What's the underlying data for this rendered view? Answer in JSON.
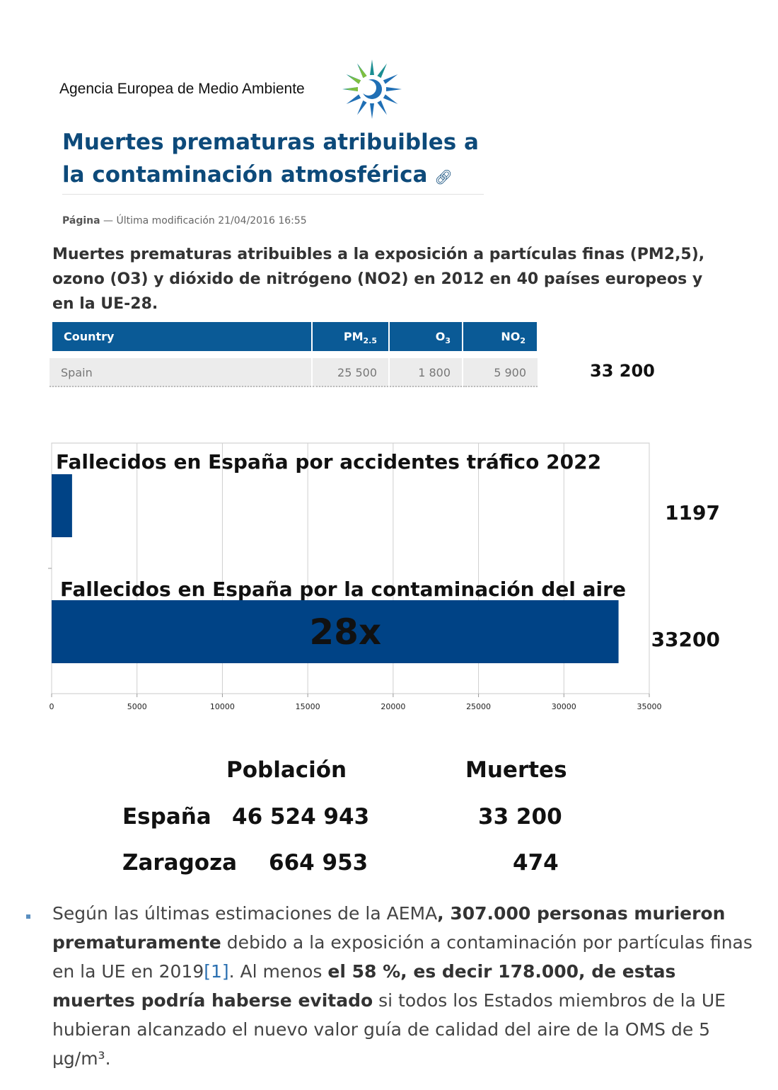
{
  "header": {
    "agency": "Agencia Europea de Medio Ambiente",
    "logo_icon": "eea-sunflower-logo-icon",
    "title": "Muertes prematuras atribuibles a la contaminación atmosférica",
    "permalink_icon": "link-icon",
    "meta_kind": "Página",
    "meta_separator": "—",
    "meta_modified": "Última modificación 21/04/2016 16:55"
  },
  "subtitle": "Muertes prematuras atribuibles a la exposición a partículas finas (PM2,5), ozono (O3) y dióxido de nitrógeno (NO2) en 2012 en 40 países europeos y en la UE-28.",
  "table": {
    "columns": [
      "Country",
      "PM",
      "O",
      "NO"
    ],
    "subscripts": [
      "",
      "2.5",
      "3",
      "2"
    ],
    "row": {
      "country": "Spain",
      "pm25": "25 500",
      "o3": "1 800",
      "no2": "5 900"
    },
    "total": "33 200"
  },
  "chart_data": {
    "type": "bar",
    "orientation": "horizontal",
    "categories": [
      "Fallecidos en España por accidentes tráfico 2022",
      "Fallecidos en España por la contaminación del aire"
    ],
    "values": [
      1197,
      33200
    ],
    "value_labels": [
      "1197",
      "33200"
    ],
    "annotation": "28x",
    "xlim": [
      0,
      35000
    ],
    "xticks": [
      0,
      5000,
      10000,
      15000,
      20000,
      25000,
      30000,
      35000
    ],
    "grid": true,
    "bar_color": "#004386"
  },
  "stats": {
    "headers": {
      "population": "Población",
      "deaths": "Muertes"
    },
    "rows": [
      {
        "place": "España",
        "population": "46 524 943",
        "deaths": "33 200"
      },
      {
        "place": "Zaragoza",
        "population": "664 953",
        "deaths": "474"
      }
    ]
  },
  "bullet": {
    "t1": "Según las últimas estimaciones de la AEMA",
    "b1": ", 307.000 personas murieron prematuramente",
    "t2": " debido a la exposición a contaminación por partículas finas en la UE en 2019",
    "ref": "[1]",
    "t3": ". Al menos ",
    "b2": "el 58 %, es decir 178.000, de estas muertes podría haberse evitado",
    "t4": " si todos los Estados miembros de la UE hubieran alcanzado el nuevo valor guía de calidad del aire de la OMS de 5 µg/m³."
  }
}
